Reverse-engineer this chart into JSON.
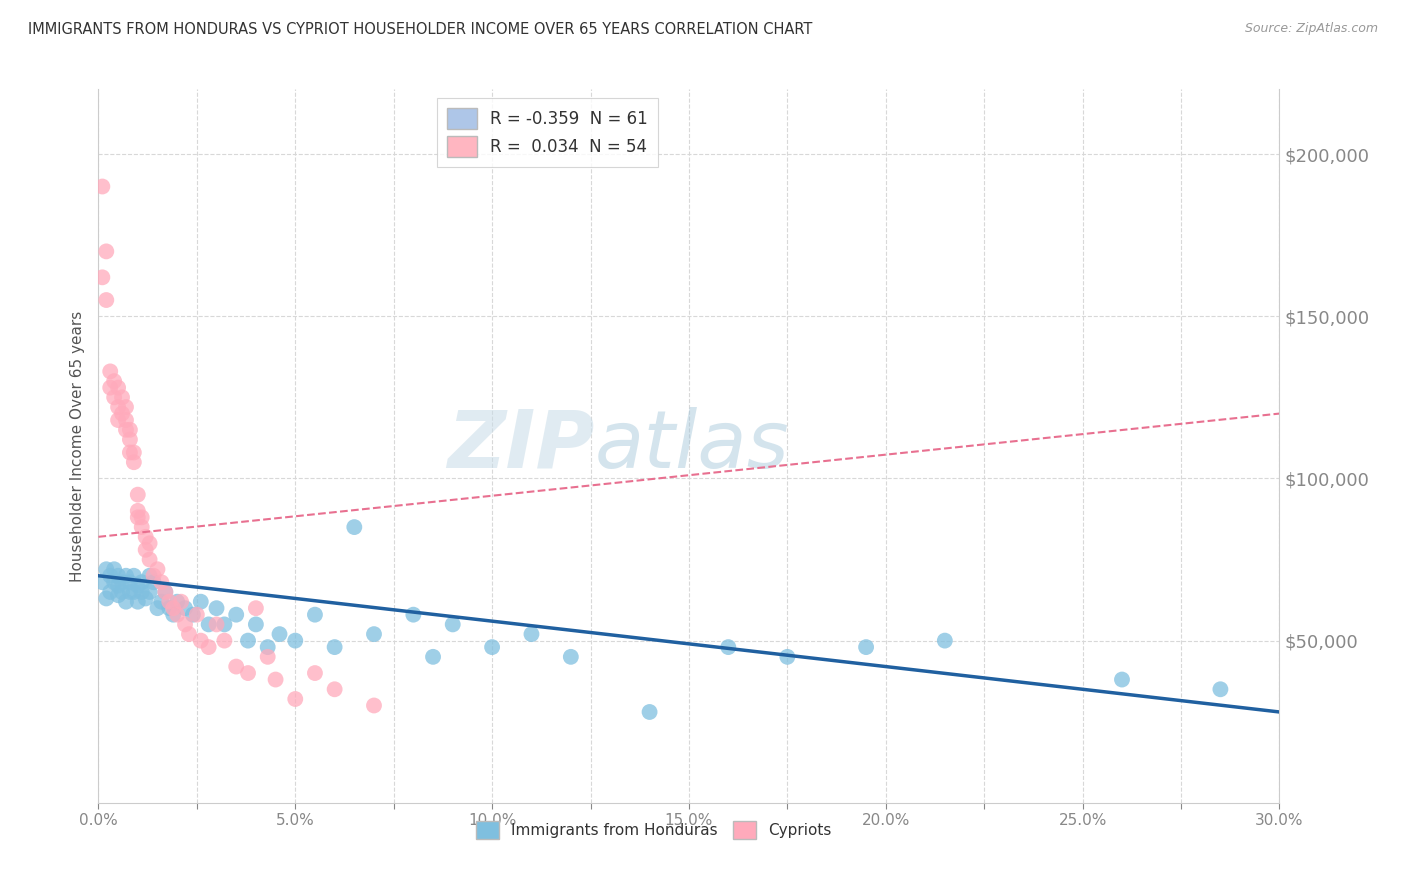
{
  "title": "IMMIGRANTS FROM HONDURAS VS CYPRIOT HOUSEHOLDER INCOME OVER 65 YEARS CORRELATION CHART",
  "source": "Source: ZipAtlas.com",
  "ylabel": "Householder Income Over 65 years",
  "xlim": [
    0.0,
    0.3
  ],
  "ylim": [
    0,
    220000
  ],
  "xtick_labels": [
    "0.0%",
    "",
    "5.0%",
    "",
    "10.0%",
    "",
    "15.0%",
    "",
    "20.0%",
    "",
    "25.0%",
    "",
    "30.0%"
  ],
  "xtick_vals": [
    0.0,
    0.025,
    0.05,
    0.075,
    0.1,
    0.125,
    0.15,
    0.175,
    0.2,
    0.225,
    0.25,
    0.275,
    0.3
  ],
  "ytick_vals": [
    50000,
    100000,
    150000,
    200000
  ],
  "ytick_labels": [
    "$50,000",
    "$100,000",
    "$150,000",
    "$200,000"
  ],
  "legend_entries": [
    {
      "label": "R = -0.359  N = 61",
      "color": "#aec6e8"
    },
    {
      "label": "R =  0.034  N = 54",
      "color": "#ffb6c1"
    }
  ],
  "series1_name": "Immigrants from Honduras",
  "series1_color": "#7fbfdf",
  "series1_line_color": "#2060a0",
  "series2_name": "Cypriots",
  "series2_color": "#ffaabb",
  "series2_line_color": "#e87090",
  "watermark_text": "ZIP",
  "watermark_text2": "atlas",
  "background_color": "#ffffff",
  "grid_color": "#d8d8d8",
  "title_color": "#333333",
  "axis_label_color": "#555555",
  "tick_label_color": "#4472c4",
  "scatter1_x": [
    0.001,
    0.002,
    0.002,
    0.003,
    0.003,
    0.004,
    0.004,
    0.005,
    0.005,
    0.005,
    0.006,
    0.006,
    0.007,
    0.007,
    0.008,
    0.008,
    0.009,
    0.009,
    0.01,
    0.01,
    0.011,
    0.011,
    0.012,
    0.013,
    0.013,
    0.014,
    0.015,
    0.016,
    0.017,
    0.018,
    0.019,
    0.02,
    0.022,
    0.024,
    0.026,
    0.028,
    0.03,
    0.032,
    0.035,
    0.038,
    0.04,
    0.043,
    0.046,
    0.05,
    0.055,
    0.06,
    0.065,
    0.07,
    0.08,
    0.085,
    0.09,
    0.1,
    0.11,
    0.12,
    0.14,
    0.16,
    0.175,
    0.195,
    0.215,
    0.26,
    0.285
  ],
  "scatter1_y": [
    68000,
    72000,
    63000,
    70000,
    65000,
    68000,
    72000,
    67000,
    64000,
    70000,
    65000,
    68000,
    62000,
    70000,
    65000,
    68000,
    70000,
    65000,
    67000,
    62000,
    68000,
    65000,
    63000,
    70000,
    65000,
    68000,
    60000,
    62000,
    65000,
    60000,
    58000,
    62000,
    60000,
    58000,
    62000,
    55000,
    60000,
    55000,
    58000,
    50000,
    55000,
    48000,
    52000,
    50000,
    58000,
    48000,
    85000,
    52000,
    58000,
    45000,
    55000,
    48000,
    52000,
    45000,
    28000,
    48000,
    45000,
    48000,
    50000,
    38000,
    35000
  ],
  "scatter2_x": [
    0.001,
    0.001,
    0.002,
    0.002,
    0.003,
    0.003,
    0.004,
    0.004,
    0.005,
    0.005,
    0.005,
    0.006,
    0.006,
    0.007,
    0.007,
    0.007,
    0.008,
    0.008,
    0.008,
    0.009,
    0.009,
    0.01,
    0.01,
    0.01,
    0.011,
    0.011,
    0.012,
    0.012,
    0.013,
    0.013,
    0.014,
    0.015,
    0.016,
    0.017,
    0.018,
    0.019,
    0.02,
    0.021,
    0.022,
    0.023,
    0.025,
    0.026,
    0.028,
    0.03,
    0.032,
    0.035,
    0.038,
    0.04,
    0.043,
    0.045,
    0.05,
    0.055,
    0.06,
    0.07
  ],
  "scatter2_y": [
    190000,
    162000,
    170000,
    155000,
    133000,
    128000,
    130000,
    125000,
    128000,
    122000,
    118000,
    125000,
    120000,
    122000,
    115000,
    118000,
    112000,
    108000,
    115000,
    105000,
    108000,
    95000,
    90000,
    88000,
    85000,
    88000,
    82000,
    78000,
    80000,
    75000,
    70000,
    72000,
    68000,
    65000,
    62000,
    60000,
    58000,
    62000,
    55000,
    52000,
    58000,
    50000,
    48000,
    55000,
    50000,
    42000,
    40000,
    60000,
    45000,
    38000,
    32000,
    40000,
    35000,
    30000
  ]
}
